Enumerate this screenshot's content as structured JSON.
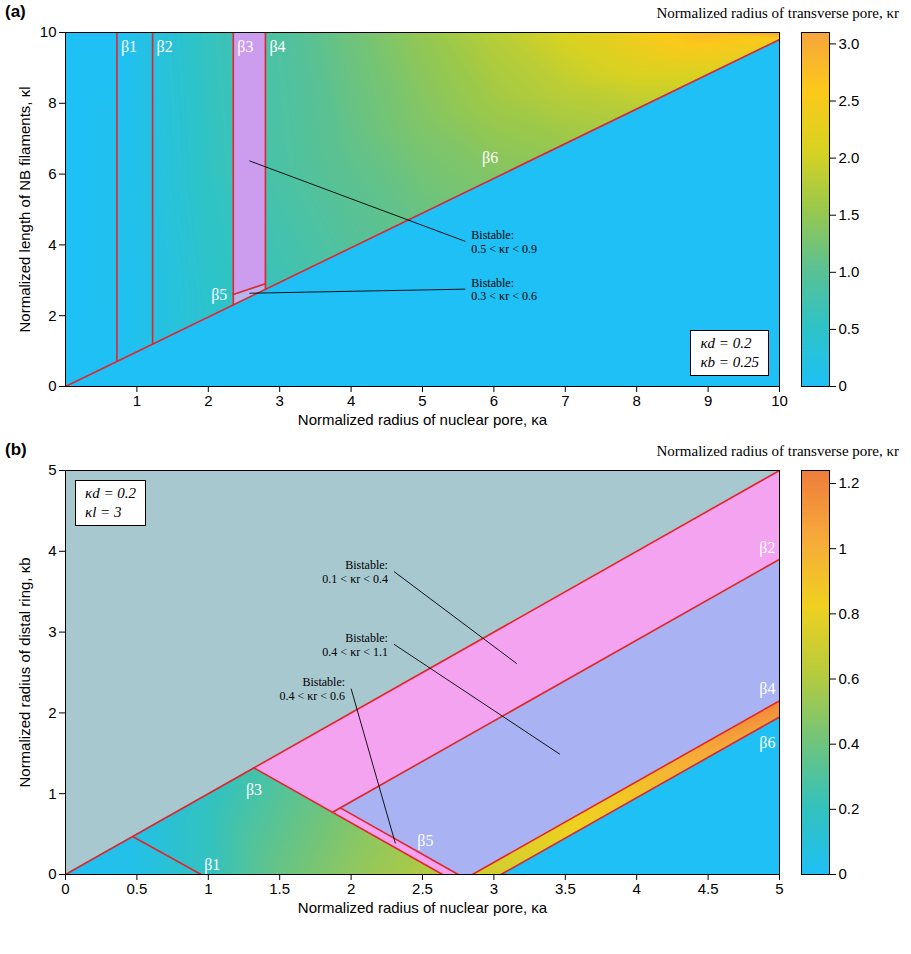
{
  "chart_data": [
    {
      "type": "heatmap",
      "title": "(a)",
      "x_label": "Normalized radius of nuclear pore, κa",
      "y_label": "Normalized length of NB filaments, κl",
      "xlim": [
        0,
        10
      ],
      "xticks": [
        1,
        2,
        3,
        4,
        5,
        6,
        7,
        8,
        9,
        10
      ],
      "ylim": [
        0,
        10
      ],
      "yticks": [
        0,
        2,
        4,
        6,
        8,
        10
      ],
      "colorbar": {
        "label": "Normalized radius of transverse pore, κr",
        "range": [
          0,
          3.1
        ],
        "ticks": [
          0,
          0.5,
          {
            "value": 1,
            "label": "1.0"
          },
          1.5,
          {
            "value": 2,
            "label": "2.0"
          },
          2.5,
          {
            "value": 3,
            "label": "3.0"
          }
        ],
        "colors": [
          "#1ec0f6",
          "#2ec3c8",
          "#5bc192",
          "#9ac84c",
          "#d8d222",
          "#fcc91a",
          "#f6a63c"
        ]
      },
      "parameters": [
        "κd = 0.2",
        "κb = 0.25"
      ],
      "kr_samples": {
        "x": [
          0,
          0,
          0.72,
          0.72,
          1,
          1,
          1,
          2,
          2,
          2,
          3,
          3,
          3,
          4,
          4,
          4,
          5,
          5,
          5,
          6,
          6,
          6,
          7,
          7,
          7,
          8,
          8,
          8,
          9,
          9,
          10,
          10
        ],
        "y": [
          0,
          10,
          0.71,
          10,
          0.98,
          5,
          10,
          1.96,
          6,
          10,
          2.94,
          6,
          10,
          3.92,
          7,
          10,
          4.9,
          7.5,
          10,
          5.88,
          8,
          10,
          6.86,
          8.5,
          10,
          7.84,
          9,
          10,
          8.82,
          10,
          9.8,
          10
        ],
        "kr": [
          0,
          0,
          0,
          0,
          0.1,
          0.12,
          0.15,
          0.45,
          0.55,
          0.6,
          0.7,
          0.85,
          0.9,
          0.95,
          1.1,
          1.2,
          1.15,
          1.35,
          1.5,
          1.35,
          1.6,
          1.8,
          1.55,
          1.85,
          2.1,
          1.8,
          2.15,
          2.45,
          2.1,
          2.8,
          2.5,
          3.1
        ]
      },
      "regions": [
        {
          "kr": 0,
          "x": [
            0,
            10
          ],
          "y_lower": [
            0,
            0
          ],
          "y_upper": [
            0,
            9.8
          ]
        },
        {
          "color": "#cc9cee",
          "annotation": [
            "Bistable:",
            "0.5 < κr < 0.9"
          ],
          "x": [
            2.35,
            2.8
          ],
          "y_lower": [
            2.6,
            2.9
          ],
          "y_upper": [
            10,
            10
          ]
        },
        {
          "color": "#b4b6f0",
          "annotation": [
            "Bistable:",
            "0.3 < κr < 0.6"
          ],
          "x": [
            2.35,
            2.8
          ],
          "y_lower": [
            2.3,
            2.74
          ],
          "y_upper": [
            2.6,
            2.9
          ]
        }
      ],
      "boundaries": {
        "color": "#e3242b",
        "lines": [
          {
            "name": "β1",
            "x": [
              0.72,
              0.72
            ],
            "y": [
              10,
              0.71
            ]
          },
          {
            "name": "β2",
            "x": [
              1.22,
              1.22
            ],
            "y": [
              10,
              1.2
            ]
          },
          {
            "name": "β3",
            "x": [
              2.35,
              2.35
            ],
            "y": [
              10,
              2.3
            ]
          },
          {
            "name": "β4",
            "x": [
              2.8,
              2.8
            ],
            "y": [
              10,
              2.74
            ]
          },
          {
            "name": "β5",
            "x": [
              2.35,
              2.8
            ],
            "y": [
              2.6,
              2.9
            ]
          },
          {
            "name": "β6",
            "x": [
              0,
              10
            ],
            "y": [
              0,
              9.8
            ]
          }
        ]
      }
    },
    {
      "type": "heatmap",
      "title": "(b)",
      "x_label": "Normalized radius of nuclear pore, κa",
      "y_label": "Normalized radius of distal ring, κb",
      "xlim": [
        0,
        5
      ],
      "xticks": [
        0,
        0.5,
        1,
        1.5,
        2,
        2.5,
        3,
        3.5,
        4,
        4.5,
        5
      ],
      "ylim": [
        0,
        5
      ],
      "yticks": [
        0,
        1,
        2,
        3,
        4,
        5
      ],
      "colorbar": {
        "label": "Normalized radius of transverse pore, κr",
        "range": [
          0,
          1.24
        ],
        "ticks": [
          0,
          0.2,
          0.4,
          0.6,
          0.8,
          1,
          1.2
        ],
        "colors": [
          "#1ec0f6",
          "#34c2bd",
          "#72c47a",
          "#b8cb3c",
          "#f0d020",
          "#f6aa3a",
          "#ef7d3c"
        ]
      },
      "parameters": [
        "κd = 0.2",
        "κl = 3"
      ],
      "kr_samples": {
        "x": [
          0,
          0.47,
          0.5,
          0.95,
          1,
          1.32,
          1.5,
          1.5,
          2,
          2,
          2.64,
          2.85,
          3.05,
          4,
          5,
          5
        ],
        "y": [
          0,
          0.47,
          0,
          0,
          0.8,
          1.32,
          0,
          0.8,
          0,
          0.5,
          0,
          0,
          0,
          0.95,
          1.95,
          2.15
        ],
        "kr": [
          0.02,
          0.05,
          0.05,
          0.18,
          0.2,
          0.25,
          0.38,
          0.33,
          0.5,
          0.47,
          0.62,
          0.7,
          0.72,
          0.9,
          1.1,
          1.2
        ]
      },
      "regions": [
        {
          "color": "#a8c8d0",
          "x": [
            0,
            5
          ],
          "y_lower": [
            0,
            5
          ],
          "y_upper": [
            5,
            5
          ]
        },
        {
          "color": "#f4a3f0",
          "annotation": [
            "Bistable:",
            "0.1 < κr < 0.4"
          ],
          "x": [
            1.32,
            1.87,
            5
          ],
          "y_lower": [
            1.32,
            0.77,
            3.9
          ],
          "y_upper": [
            1.32,
            1.87,
            5
          ]
        },
        {
          "color": "#f4a3f0",
          "annotation": [
            "Bistable:",
            "0.4 < κr < 0.6"
          ],
          "x": [
            1.87,
            1.925,
            2.64,
            2.75
          ],
          "y_lower": [
            0.77,
            0.715,
            0,
            0
          ],
          "y_upper": [
            0.77,
            0.825,
            0.11,
            0
          ]
        },
        {
          "color": "#a9b2f2",
          "annotation": [
            "Bistable:",
            "0.4 < κr < 1.1"
          ],
          "x": [
            1.925,
            2.75,
            2.85,
            5
          ],
          "y_lower": [
            0.825,
            0,
            0,
            2.15
          ],
          "y_upper": [
            0.825,
            1.65,
            1.75,
            3.9
          ]
        },
        {
          "kr": 0,
          "x": [
            3.05,
            5
          ],
          "y_lower": [
            0,
            0
          ],
          "y_upper": [
            0,
            1.95
          ]
        }
      ],
      "boundaries": {
        "color": "#e3242b",
        "lines": [
          {
            "x": [
              0,
              5
            ],
            "y": [
              0,
              5
            ]
          },
          {
            "name": "β1",
            "x": [
              0.95,
              0.47
            ],
            "y": [
              0,
              0.47
            ]
          },
          {
            "name": "β2",
            "x": [
              5,
              1.87
            ],
            "y": [
              3.9,
              0.77
            ]
          },
          {
            "name": "β3",
            "x": [
              1.32,
              2.64
            ],
            "y": [
              1.32,
              0
            ]
          },
          {
            "name": "β4",
            "x": [
              5,
              2.85
            ],
            "y": [
              2.15,
              0
            ]
          },
          {
            "name": "β5",
            "x": [
              1.925,
              2.75
            ],
            "y": [
              0.825,
              0
            ]
          },
          {
            "name": "β6",
            "x": [
              5,
              3.05
            ],
            "y": [
              1.95,
              0
            ]
          }
        ]
      }
    }
  ]
}
